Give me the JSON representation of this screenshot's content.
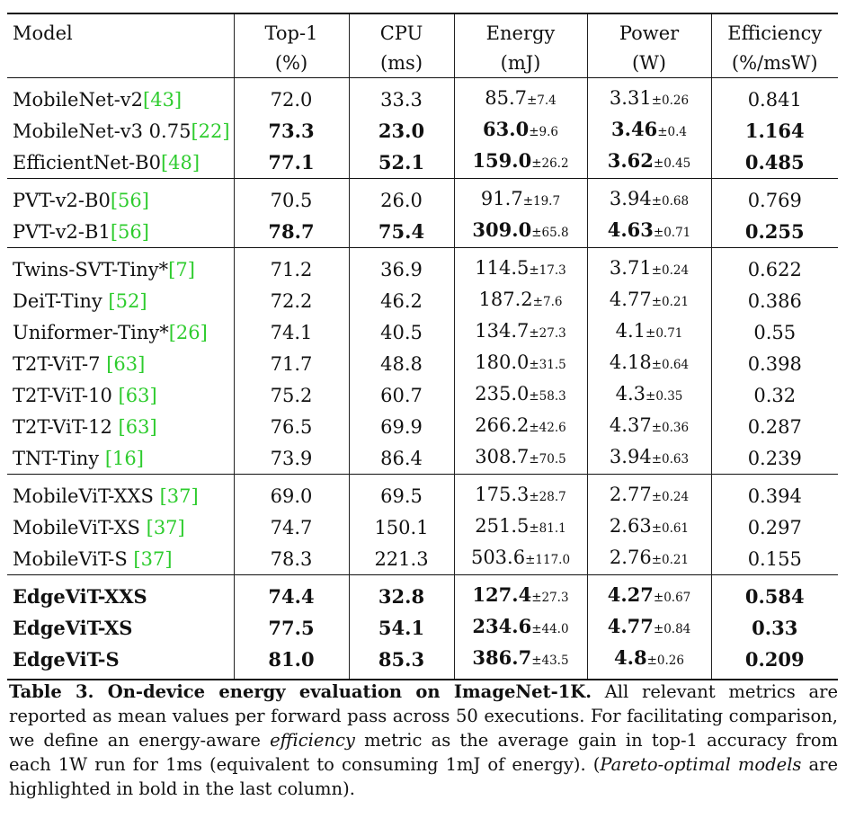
{
  "header": {
    "model": "Model",
    "top1": [
      "Top-1",
      "(%)"
    ],
    "cpu": [
      "CPU",
      "(ms)"
    ],
    "energy": [
      "Energy",
      "(mJ)"
    ],
    "power": [
      "Power",
      "(W)"
    ],
    "efficiency": [
      "Efficiency",
      "(%/msW)"
    ]
  },
  "groups": [
    [
      {
        "model": "MobileNet-v2",
        "ref": "[43]",
        "top1": "72.0",
        "cpu": "33.3",
        "energy": "85.7",
        "energy_sd": "±7.4",
        "power": "3.31",
        "power_sd": "±0.26",
        "eff": "0.841",
        "bold": false
      },
      {
        "model": "MobileNet-v3 0.75",
        "ref": "[22]",
        "top1": "73.3",
        "cpu": "23.0",
        "energy": "63.0",
        "energy_sd": "±9.6",
        "power": "3.46",
        "power_sd": "±0.4",
        "eff": "1.164",
        "bold": true
      },
      {
        "model": "EfficientNet-B0",
        "ref": "[48]",
        "top1": "77.1",
        "cpu": "52.1",
        "energy": "159.0",
        "energy_sd": "±26.2",
        "power": "3.62",
        "power_sd": "±0.45",
        "eff": "0.485",
        "bold": true
      }
    ],
    [
      {
        "model": "PVT-v2-B0",
        "ref": "[56]",
        "top1": "70.5",
        "cpu": "26.0",
        "energy": "91.7",
        "energy_sd": "±19.7",
        "power": "3.94",
        "power_sd": "±0.68",
        "eff": "0.769",
        "bold": false
      },
      {
        "model": "PVT-v2-B1",
        "ref": "[56]",
        "top1": "78.7",
        "cpu": "75.4",
        "energy": "309.0",
        "energy_sd": "±65.8",
        "power": "4.63",
        "power_sd": "±0.71",
        "eff": "0.255",
        "bold": true
      }
    ],
    [
      {
        "model": "Twins-SVT-Tiny*",
        "ref": "[7]",
        "top1": "71.2",
        "cpu": "36.9",
        "energy": "114.5",
        "energy_sd": "±17.3",
        "power": "3.71",
        "power_sd": "±0.24",
        "eff": "0.622",
        "bold": false
      },
      {
        "model": "DeiT-Tiny ",
        "ref": "[52]",
        "top1": "72.2",
        "cpu": "46.2",
        "energy": "187.2",
        "energy_sd": "±7.6",
        "power": "4.77",
        "power_sd": "±0.21",
        "eff": "0.386",
        "bold": false
      },
      {
        "model": "Uniformer-Tiny*",
        "ref": "[26]",
        "top1": "74.1",
        "cpu": "40.5",
        "energy": "134.7",
        "energy_sd": "±27.3",
        "power": "4.1",
        "power_sd": "±0.71",
        "eff": "0.55",
        "bold": false
      },
      {
        "model": "T2T-ViT-7 ",
        "ref": "[63]",
        "top1": "71.7",
        "cpu": "48.8",
        "energy": "180.0",
        "energy_sd": "±31.5",
        "power": "4.18",
        "power_sd": "±0.64",
        "eff": "0.398",
        "bold": false
      },
      {
        "model": "T2T-ViT-10 ",
        "ref": "[63]",
        "top1": "75.2",
        "cpu": "60.7",
        "energy": "235.0",
        "energy_sd": "±58.3",
        "power": "4.3",
        "power_sd": "±0.35",
        "eff": "0.32",
        "bold": false
      },
      {
        "model": "T2T-ViT-12 ",
        "ref": "[63]",
        "top1": "76.5",
        "cpu": "69.9",
        "energy": "266.2",
        "energy_sd": "±42.6",
        "power": "4.37",
        "power_sd": "±0.36",
        "eff": "0.287",
        "bold": false
      },
      {
        "model": "TNT-Tiny ",
        "ref": "[16]",
        "top1": "73.9",
        "cpu": "86.4",
        "energy": "308.7",
        "energy_sd": "±70.5",
        "power": "3.94",
        "power_sd": "±0.63",
        "eff": "0.239",
        "bold": false
      }
    ],
    [
      {
        "model": "MobileViT-XXS ",
        "ref": "[37]",
        "top1": "69.0",
        "cpu": "69.5",
        "energy": "175.3",
        "energy_sd": "±28.7",
        "power": "2.77",
        "power_sd": "±0.24",
        "eff": "0.394",
        "bold": false
      },
      {
        "model": "MobileViT-XS ",
        "ref": "[37]",
        "top1": "74.7",
        "cpu": "150.1",
        "energy": "251.5",
        "energy_sd": "±81.1",
        "power": "2.63",
        "power_sd": "±0.61",
        "eff": "0.297",
        "bold": false
      },
      {
        "model": "MobileViT-S ",
        "ref": "[37]",
        "top1": "78.3",
        "cpu": "221.3",
        "energy": "503.6",
        "energy_sd": "±117.0",
        "power": "2.76",
        "power_sd": "±0.21",
        "eff": "0.155",
        "bold": false
      }
    ],
    [
      {
        "model": "EdgeViT-XXS",
        "ref": "",
        "top1": "74.4",
        "cpu": "32.8",
        "energy": "127.4",
        "energy_sd": "±27.3",
        "power": "4.27",
        "power_sd": "±0.67",
        "eff": "0.584",
        "bold": true,
        "boldModel": true
      },
      {
        "model": "EdgeViT-XS",
        "ref": "",
        "top1": "77.5",
        "cpu": "54.1",
        "energy": "234.6",
        "energy_sd": "±44.0",
        "power": "4.77",
        "power_sd": "±0.84",
        "eff": "0.33",
        "bold": true,
        "boldModel": true
      },
      {
        "model": "EdgeViT-S",
        "ref": "",
        "top1": "81.0",
        "cpu": "85.3",
        "energy": "386.7",
        "energy_sd": "±43.5",
        "power": "4.8",
        "power_sd": "±0.26",
        "eff": "0.209",
        "bold": true,
        "boldModel": true
      }
    ]
  ],
  "caption": {
    "title": "Table 3. On-device energy evaluation on ImageNet-1K.",
    "part1": " All relevant metrics are reported as mean values per forward pass across 50 executions. For facilitating comparison, we define an energy-aware ",
    "emph1": "efficiency",
    "part2": " metric as the average gain in top-1 accuracy from each 1W run for 1ms (equivalent to consuming 1mJ of energy). (",
    "emph2": "Pareto-optimal models",
    "part3": " are highlighted in bold in the last column)."
  }
}
